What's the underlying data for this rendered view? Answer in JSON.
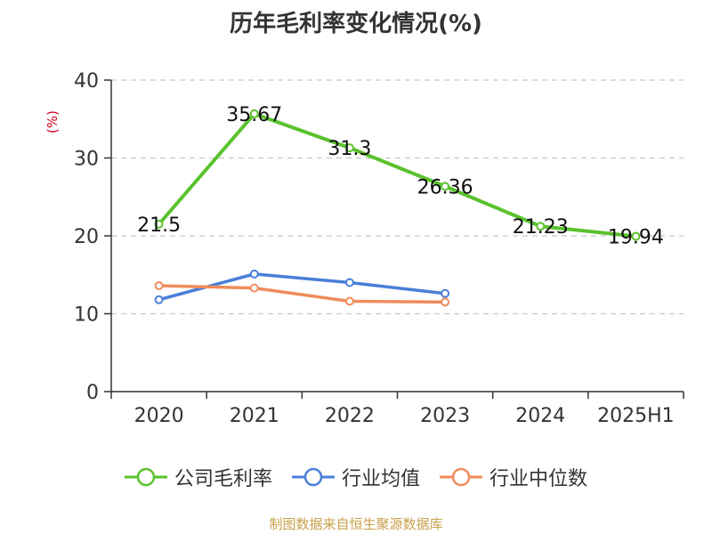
{
  "chart_data": {
    "type": "line",
    "title": "历年毛利率变化情况(%)",
    "ylabel": "(%)",
    "categories": [
      "2020",
      "2021",
      "2022",
      "2023",
      "2024",
      "2025H1"
    ],
    "ylim": [
      0,
      40
    ],
    "yticks": [
      "0",
      "10",
      "20",
      "30",
      "40"
    ],
    "grid": true,
    "legend_position": "bottom",
    "series": [
      {
        "name": "公司毛利率",
        "color": "#5ac22d",
        "values": [
          21.5,
          35.67,
          31.3,
          26.36,
          21.23,
          19.94
        ],
        "labels": [
          "21.5",
          "35.67",
          "31.3",
          "26.36",
          "21.23",
          "19.94"
        ]
      },
      {
        "name": "行业均值",
        "color": "#4a7fd9",
        "values": [
          11.8,
          15.1,
          14.0,
          12.6,
          null,
          null
        ]
      },
      {
        "name": "行业中位数",
        "color": "#f08c5a",
        "values": [
          13.6,
          13.3,
          11.6,
          11.5,
          null,
          null
        ]
      }
    ]
  },
  "footer": {
    "source": "制图数据来自恒生聚源数据库"
  }
}
